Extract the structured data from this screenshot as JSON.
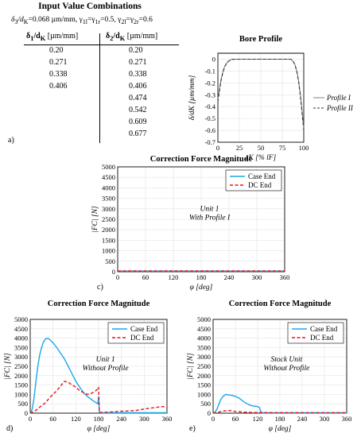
{
  "table": {
    "title": "Input Value Combinations",
    "subtitle_parts": {
      "a": "δ",
      "a_sub": "3",
      "b": "/d",
      "b_sub": "K",
      "c": "=0.068 µm/mm, γ",
      "c_sub": "1l",
      "d": "=γ",
      "d_sub": "1r",
      "e": "=0.5, γ",
      "e_sub": "2l",
      "f": "=γ",
      "f_sub": "2r",
      "g": "=0.6"
    },
    "col1_header": {
      "a": "δ",
      "a_sub": "1",
      "b": "/d",
      "b_sub": "K",
      "c": " [µm/mm]"
    },
    "col2_header": {
      "a": "δ",
      "a_sub": "2",
      "b": "/d",
      "b_sub": "K",
      "c": " [µm/mm]"
    },
    "col1_values": [
      "0.20",
      "0.271",
      "0.338",
      "0.406"
    ],
    "col2_values": [
      "0.20",
      "0.271",
      "0.338",
      "0.406",
      "0.474",
      "0.542",
      "0.609",
      "0.677"
    ],
    "panel_label": "a)"
  },
  "chart_data": [
    {
      "id": "bore",
      "type": "line",
      "title": "Bore Profile",
      "xlabel": "zK [% lF]",
      "ylabel": "δ/dK [µm/mm]",
      "xlim": [
        0,
        100
      ],
      "ylim": [
        -0.7,
        0.05
      ],
      "xticks": [
        "0",
        "25",
        "50",
        "75",
        "100"
      ],
      "yticks": [
        "0",
        "-0.1",
        "-0.2",
        "-0.3",
        "-0.4",
        "-0.5",
        "-0.6",
        "-0.7"
      ],
      "grid": true,
      "legend_position": "right",
      "series": [
        {
          "name": "Profile I",
          "color": "#808080",
          "dash": "solid",
          "x": [
            0,
            2,
            4,
            6,
            8,
            10,
            12,
            14,
            16,
            18,
            20,
            85,
            88,
            90,
            92,
            94,
            96,
            98,
            100
          ],
          "y": [
            -0.34,
            -0.24,
            -0.16,
            -0.1,
            -0.06,
            -0.035,
            -0.018,
            -0.008,
            -0.003,
            -0.001,
            0,
            0,
            -0.02,
            -0.05,
            -0.1,
            -0.18,
            -0.29,
            -0.43,
            -0.58
          ]
        },
        {
          "name": "Profile II",
          "color": "#303030",
          "dash": "dashed",
          "x": [
            0,
            2,
            4,
            6,
            8,
            10,
            12,
            14,
            16,
            18,
            20,
            85,
            88,
            90,
            92,
            94,
            96,
            98,
            100
          ],
          "y": [
            -0.36,
            -0.26,
            -0.17,
            -0.11,
            -0.065,
            -0.038,
            -0.02,
            -0.009,
            -0.003,
            -0.001,
            0,
            0,
            -0.022,
            -0.055,
            -0.11,
            -0.19,
            -0.31,
            -0.45,
            -0.6
          ]
        }
      ],
      "panel_label": ""
    },
    {
      "id": "c",
      "type": "line",
      "title": "Correction Force Magnitude",
      "xlabel": "φ [deg]",
      "ylabel": "|FC| [N]",
      "xlim": [
        0,
        360
      ],
      "ylim": [
        0,
        5000
      ],
      "xticks": [
        "0",
        "60",
        "120",
        "180",
        "240",
        "300",
        "360"
      ],
      "yticks": [
        "0",
        "500",
        "1000",
        "1500",
        "2000",
        "2500",
        "3000",
        "3500",
        "4000",
        "4500",
        "5000"
      ],
      "grid": true,
      "legend_position": "top-right",
      "annotation": [
        "Unit 1",
        "With Profile I"
      ],
      "series": [
        {
          "name": "Case End",
          "color": "#1aa7e8",
          "dash": "solid",
          "x": [
            0,
            360
          ],
          "y": [
            30,
            30
          ]
        },
        {
          "name": "DC End",
          "color": "#e8141a",
          "dash": "dashed",
          "x": [
            0,
            360
          ],
          "y": [
            40,
            40
          ]
        }
      ],
      "panel_label": "c)"
    },
    {
      "id": "d",
      "type": "line",
      "title": "Correction Force Magnitude",
      "xlabel": "φ [deg]",
      "ylabel": "|FC| [N]",
      "xlim": [
        0,
        360
      ],
      "ylim": [
        0,
        5000
      ],
      "xticks": [
        "0",
        "60",
        "120",
        "180",
        "240",
        "300",
        "360"
      ],
      "yticks": [
        "0",
        "500",
        "1000",
        "1500",
        "2000",
        "2500",
        "3000",
        "3500",
        "4000",
        "4500",
        "5000"
      ],
      "grid": true,
      "legend_position": "top-right",
      "annotation": [
        "Unit 1",
        "Without Profile"
      ],
      "series": [
        {
          "name": "Case End",
          "color": "#1aa7e8",
          "dash": "solid",
          "x": [
            0,
            5,
            10,
            15,
            20,
            25,
            30,
            35,
            40,
            45,
            50,
            55,
            60,
            70,
            80,
            90,
            100,
            110,
            120,
            130,
            140,
            150,
            160,
            170,
            178,
            180,
            182,
            190,
            200,
            220,
            240,
            260,
            280,
            300,
            320,
            340,
            360
          ],
          "y": [
            0,
            200,
            800,
            1700,
            2500,
            3100,
            3500,
            3800,
            3950,
            4000,
            3950,
            3850,
            3750,
            3500,
            3200,
            2900,
            2500,
            2100,
            1700,
            1400,
            1100,
            900,
            750,
            600,
            500,
            900,
            30,
            20,
            20,
            20,
            20,
            20,
            20,
            20,
            20,
            20,
            20
          ]
        },
        {
          "name": "DC End",
          "color": "#e8141a",
          "dash": "dashed",
          "x": [
            0,
            5,
            10,
            15,
            20,
            30,
            40,
            50,
            60,
            70,
            80,
            90,
            100,
            110,
            120,
            130,
            140,
            150,
            160,
            170,
            178,
            180,
            182,
            190,
            200,
            220,
            240,
            260,
            280,
            300,
            320,
            340,
            350,
            360
          ],
          "y": [
            0,
            50,
            100,
            150,
            250,
            400,
            550,
            800,
            1000,
            1200,
            1450,
            1700,
            1650,
            1500,
            1400,
            1200,
            1100,
            1000,
            1050,
            1150,
            1300,
            1400,
            50,
            40,
            50,
            70,
            100,
            120,
            150,
            220,
            280,
            330,
            350,
            300
          ]
        }
      ],
      "panel_label": "d)"
    },
    {
      "id": "e",
      "type": "line",
      "title": "Correction Force Magnitude",
      "xlabel": "φ [deg]",
      "ylabel": "|FC| [N]",
      "xlim": [
        0,
        360
      ],
      "ylim": [
        0,
        5000
      ],
      "xticks": [
        "0",
        "60",
        "120",
        "180",
        "240",
        "300",
        "360"
      ],
      "yticks": [
        "0",
        "500",
        "1000",
        "1500",
        "2000",
        "2500",
        "3000",
        "3500",
        "4000",
        "4500",
        "5000"
      ],
      "grid": true,
      "legend_position": "top-right",
      "annotation": [
        "Stock Unit",
        "Without Profile"
      ],
      "series": [
        {
          "name": "Case End",
          "color": "#1aa7e8",
          "dash": "solid",
          "x": [
            0,
            5,
            10,
            15,
            20,
            25,
            30,
            35,
            40,
            50,
            60,
            70,
            80,
            90,
            100,
            110,
            120,
            125,
            130,
            360
          ],
          "y": [
            0,
            50,
            200,
            450,
            700,
            850,
            950,
            1000,
            980,
            950,
            900,
            800,
            650,
            520,
            420,
            380,
            350,
            300,
            20,
            20
          ]
        },
        {
          "name": "DC End",
          "color": "#e8141a",
          "dash": "dashed",
          "x": [
            0,
            10,
            20,
            30,
            40,
            50,
            60,
            80,
            100,
            130,
            160,
            200,
            250,
            300,
            360
          ],
          "y": [
            0,
            30,
            80,
            120,
            150,
            130,
            90,
            60,
            40,
            30,
            25,
            20,
            20,
            20,
            20
          ]
        }
      ],
      "panel_label": "e)"
    }
  ]
}
